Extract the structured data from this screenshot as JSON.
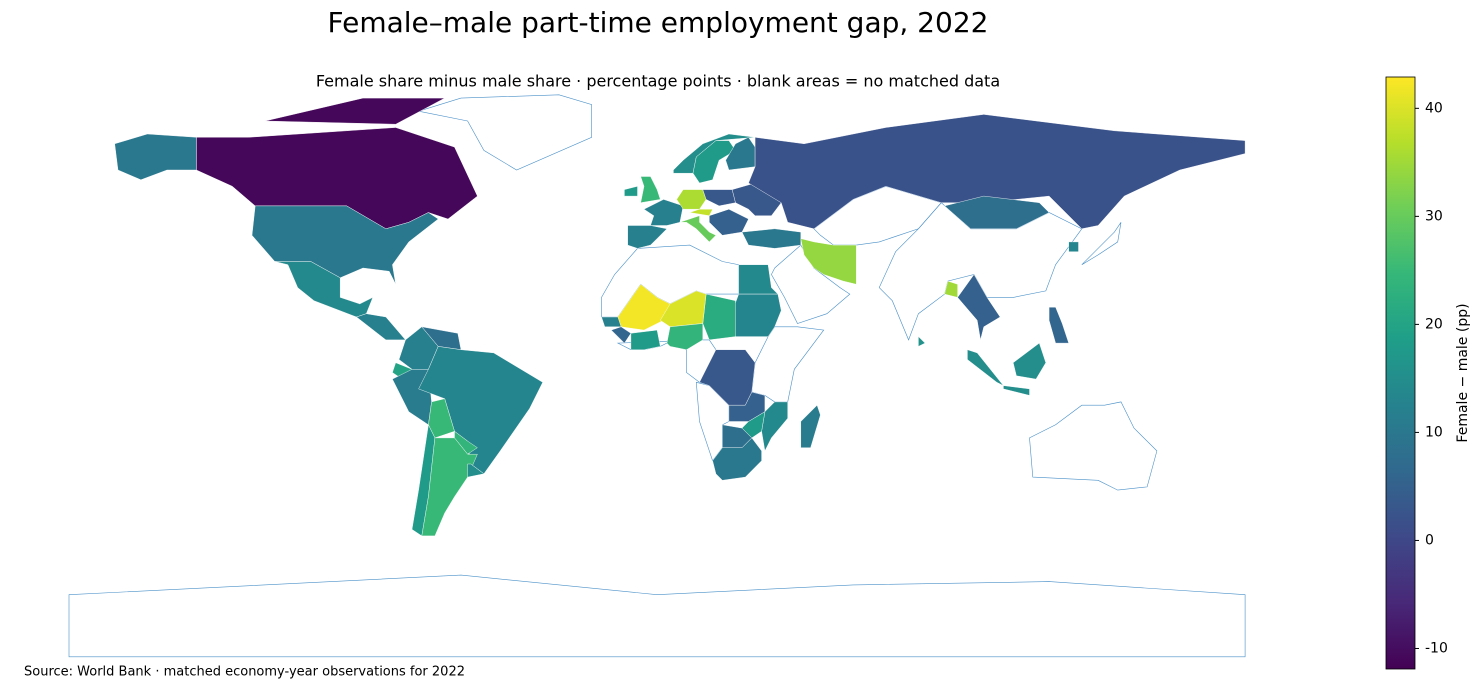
{
  "chart_data": {
    "type": "choropleth",
    "title": "Female–male part-time employment gap, 2022",
    "subtitle": "Female share minus male share · percentage points · blank areas = no matched data",
    "source": "Source: World Bank · matched economy-year observations for 2022",
    "colorbar_label": "Female − male (pp)",
    "colormap": "viridis",
    "clim": [
      -11.9,
      42.9
    ],
    "cticks": [
      -10,
      0,
      10,
      20,
      30,
      40
    ],
    "values": [
      -11,
      -11,
      10,
      10,
      14,
      12,
      12,
      8,
      20,
      11,
      13,
      25,
      24,
      18,
      25,
      15,
      25,
      18,
      12,
      12,
      36,
      3,
      30,
      38,
      5,
      15,
      18,
      10,
      3,
      10,
      2,
      8,
      34,
      14,
      13,
      22,
      42,
      40,
      12,
      24,
      18,
      6,
      3,
      5,
      14,
      18,
      10,
      8,
      11,
      35,
      5,
      6,
      15,
      15,
      15,
      13,
      16
    ]
  }
}
